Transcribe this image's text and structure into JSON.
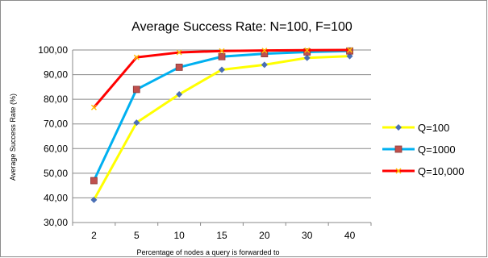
{
  "chart_data": {
    "type": "line",
    "title": "Average Success Rate: N=100, F=100",
    "xlabel": "Percentage of nodes a query is forwarded to",
    "ylabel": "Average Success Rate (%)",
    "categories": [
      "2",
      "5",
      "10",
      "15",
      "20",
      "30",
      "40"
    ],
    "ylim": [
      30,
      100
    ],
    "yticks": [
      "30,00",
      "40,00",
      "50,00",
      "60,00",
      "70,00",
      "80,00",
      "90,00",
      "100,00"
    ],
    "ytick_values": [
      30,
      40,
      50,
      60,
      70,
      80,
      90,
      100
    ],
    "grid": true,
    "legend_position": "right",
    "series": [
      {
        "name": "Q=100",
        "color": "#FFFF00",
        "marker": "diamond",
        "marker_color": "#4A6FB5",
        "values": [
          39.2,
          70.5,
          82.0,
          92.0,
          94.0,
          96.8,
          97.5
        ]
      },
      {
        "name": "Q=1000",
        "color": "#00B0F0",
        "marker": "square",
        "marker_color": "#C0504D",
        "values": [
          47.0,
          84.0,
          93.0,
          97.3,
          98.5,
          99.2,
          99.6
        ]
      },
      {
        "name": "Q=10,000",
        "color": "#FF0000",
        "marker": "cross",
        "marker_color": "#FFC000",
        "values": [
          76.7,
          97.0,
          99.0,
          99.6,
          99.8,
          99.9,
          100.0
        ]
      }
    ]
  }
}
